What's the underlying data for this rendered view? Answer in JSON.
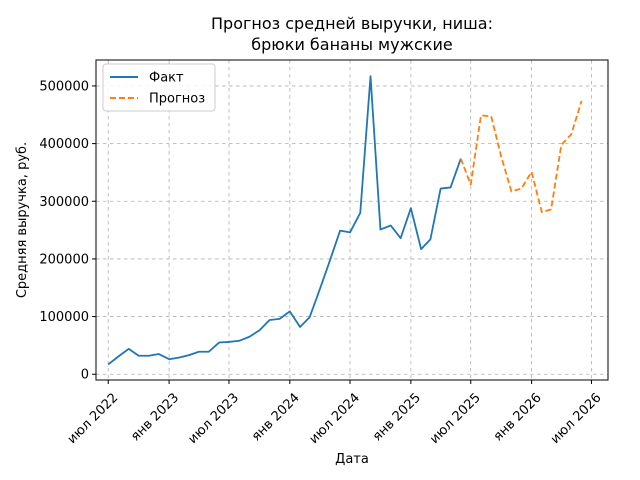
{
  "chart_data": {
    "type": "line",
    "title_line1": "Прогноз средней выручки, ниша:",
    "title_line2": "брюки бананы мужские",
    "xlabel": "Дата",
    "ylabel": "Средняя выручка, руб.",
    "ylim": [
      -10000,
      545000
    ],
    "xlim": [
      "2022-05-25",
      "2026-08-20"
    ],
    "grid": true,
    "legend_position": "top-left",
    "y_ticks": [
      0,
      100000,
      200000,
      300000,
      400000,
      500000
    ],
    "y_tick_labels": [
      "0",
      "100000",
      "200000",
      "300000",
      "400000",
      "500000"
    ],
    "x_ticks": [
      "2022-07-01",
      "2023-01-01",
      "2023-07-01",
      "2024-01-01",
      "2024-07-01",
      "2025-01-01",
      "2025-07-01",
      "2026-01-01",
      "2026-07-01"
    ],
    "x_tick_labels": [
      "июл 2022",
      "янв 2023",
      "июл 2023",
      "янв 2024",
      "июл 2024",
      "янв 2025",
      "июл 2025",
      "янв 2026",
      "июл 2026"
    ],
    "series": [
      {
        "name": "Факт",
        "color": "#1f77b4",
        "style": "solid",
        "x": [
          "2022-07-01",
          "2022-08-01",
          "2022-09-01",
          "2022-10-01",
          "2022-11-01",
          "2022-12-01",
          "2023-01-01",
          "2023-02-01",
          "2023-03-01",
          "2023-04-01",
          "2023-05-01",
          "2023-06-01",
          "2023-07-01",
          "2023-08-01",
          "2023-09-01",
          "2023-10-01",
          "2023-11-01",
          "2023-12-01",
          "2024-01-01",
          "2024-02-01",
          "2024-03-01",
          "2024-04-01",
          "2024-05-01",
          "2024-06-01",
          "2024-07-01",
          "2024-08-01",
          "2024-09-01",
          "2024-10-01",
          "2024-11-01",
          "2024-12-01",
          "2025-01-01",
          "2025-02-01",
          "2025-03-01",
          "2025-04-01",
          "2025-05-01",
          "2025-06-01"
        ],
        "values": [
          17000,
          31000,
          44000,
          32000,
          32000,
          35000,
          26000,
          29000,
          33000,
          39000,
          39000,
          55000,
          56000,
          58000,
          65000,
          76000,
          94000,
          96000,
          109000,
          82000,
          99000,
          148000,
          197000,
          249000,
          246000,
          280000,
          517000,
          251000,
          258000,
          236000,
          288000,
          217000,
          234000,
          322000,
          324000,
          374000
        ]
      },
      {
        "name": "Прогноз",
        "color": "#ff7f0e",
        "style": "dashed",
        "x": [
          "2025-06-01",
          "2025-07-01",
          "2025-08-01",
          "2025-09-01",
          "2025-10-01",
          "2025-11-01",
          "2025-12-01",
          "2026-01-01",
          "2026-02-01",
          "2026-03-01",
          "2026-04-01",
          "2026-05-01",
          "2026-06-01"
        ],
        "values": [
          374000,
          329000,
          449000,
          447000,
          378000,
          317000,
          322000,
          351000,
          281000,
          286000,
          398000,
          416000,
          474000
        ]
      }
    ]
  }
}
